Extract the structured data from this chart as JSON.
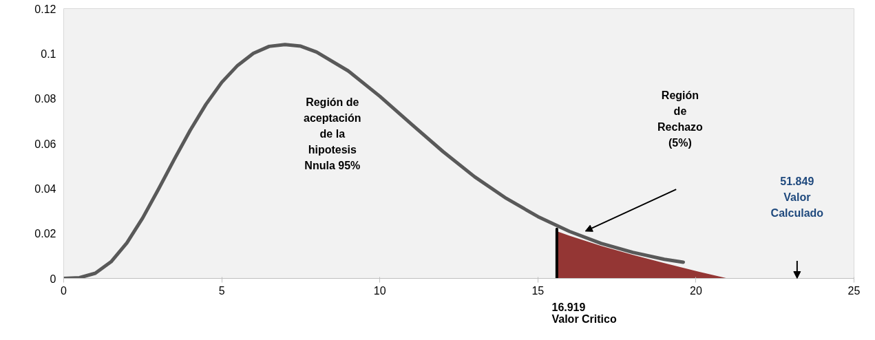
{
  "chart_data": {
    "type": "line",
    "xlim": [
      0,
      25
    ],
    "xticks": [
      0,
      5,
      10,
      15,
      20,
      25
    ],
    "ylim": [
      0,
      0.12
    ],
    "yticks": [
      0,
      0.02,
      0.04,
      0.06,
      0.08,
      0.1,
      0.12
    ],
    "grid": false,
    "marker": "none",
    "line_style": "solid",
    "series": [
      {
        "color": "#595959",
        "x": [
          0,
          0.5,
          1,
          1.5,
          2,
          2.5,
          3,
          3.5,
          4,
          4.5,
          5,
          5.5,
          6,
          6.5,
          7,
          7.5,
          8,
          9,
          10,
          11,
          12,
          13,
          14,
          15,
          16,
          17,
          18,
          19,
          19.6
        ],
        "values": [
          0,
          0.0003,
          0.0023,
          0.0074,
          0.0158,
          0.0269,
          0.0397,
          0.053,
          0.0658,
          0.0774,
          0.0872,
          0.0947,
          0.1001,
          0.1032,
          0.104,
          0.1033,
          0.1007,
          0.0923,
          0.081,
          0.0686,
          0.0564,
          0.0452,
          0.0356,
          0.0275,
          0.0209,
          0.0156,
          0.0116,
          0.0085,
          0.0072
        ]
      },
      {
        "type": "area",
        "color": "#943634",
        "x": [
          15.6,
          16,
          17,
          18,
          19,
          20,
          21
        ],
        "values": [
          0.021,
          0.019,
          0.0145,
          0.0105,
          0.0068,
          0.0033,
          0
        ]
      },
      {
        "type": "line",
        "color": "#000000",
        "x": [
          15.6,
          15.6
        ],
        "values": [
          0,
          0.022
        ]
      }
    ],
    "annotations": [
      "Región de\naceptación\nde la\nhipotesis\nNnula 95%",
      "Región\nde\nRechazo\n(5%)",
      "16.919\nValor Critico",
      "51.849\nValor\nCalculado"
    ]
  }
}
